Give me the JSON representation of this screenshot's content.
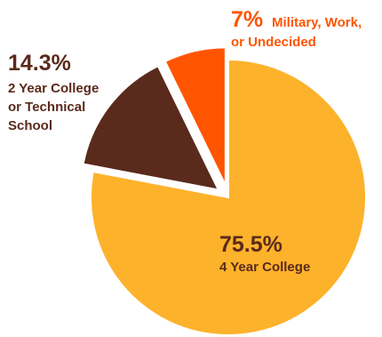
{
  "chart_data": {
    "type": "pie",
    "title": "",
    "slices": [
      {
        "percent_label": "75.5%",
        "value": 75.5,
        "label_lines": [
          "4 Year College"
        ],
        "color": "#FDB22B",
        "exploded": false
      },
      {
        "percent_label": "14.3%",
        "value": 14.3,
        "label_lines": [
          "2 Year College",
          "or Technical",
          "School"
        ],
        "color": "#5A2A1C",
        "exploded": true
      },
      {
        "percent_label": "7%",
        "value": 7,
        "label_lines": [
          "Military, Work,",
          "or Undecided"
        ],
        "color": "#FF5500",
        "exploded": true
      }
    ]
  },
  "colors": {
    "label_dark": "#5A2A1C",
    "label_orange": "#FF5500"
  }
}
